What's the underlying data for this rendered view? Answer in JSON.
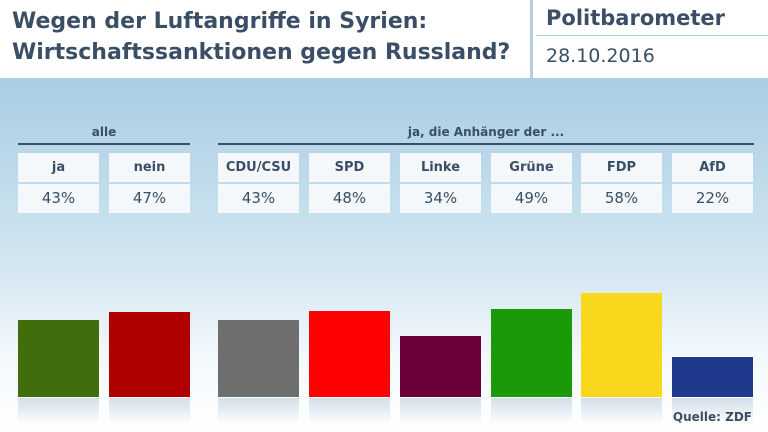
{
  "header": {
    "title": "Wegen der Luftangriffe in Syrien:\nWirtschaftssanktionen gegen Russland?",
    "brand": "Politbarometer",
    "date": "28.10.2016"
  },
  "groups": {
    "all_label": "alle",
    "parties_label": "ja, die Anhänger der ..."
  },
  "source": "Quelle: ZDF",
  "chart_data": {
    "type": "bar",
    "title": "Wegen der Luftangriffe in Syrien: Wirtschaftssanktionen gegen Russland?",
    "categories": [
      "ja",
      "nein",
      "CDU/CSU",
      "SPD",
      "Linke",
      "Grüne",
      "FDP",
      "AfD"
    ],
    "values": [
      43,
      47,
      43,
      48,
      34,
      49,
      58,
      22
    ],
    "value_labels": [
      "43%",
      "47%",
      "43%",
      "48%",
      "34%",
      "49%",
      "58%",
      "22%"
    ],
    "unit": "%",
    "colors": [
      "#416d0d",
      "#b00000",
      "#6e6e6e",
      "#ff0000",
      "#6a0038",
      "#1a9a08",
      "#f9d71d",
      "#20398c"
    ],
    "ylim": [
      0,
      100
    ]
  }
}
